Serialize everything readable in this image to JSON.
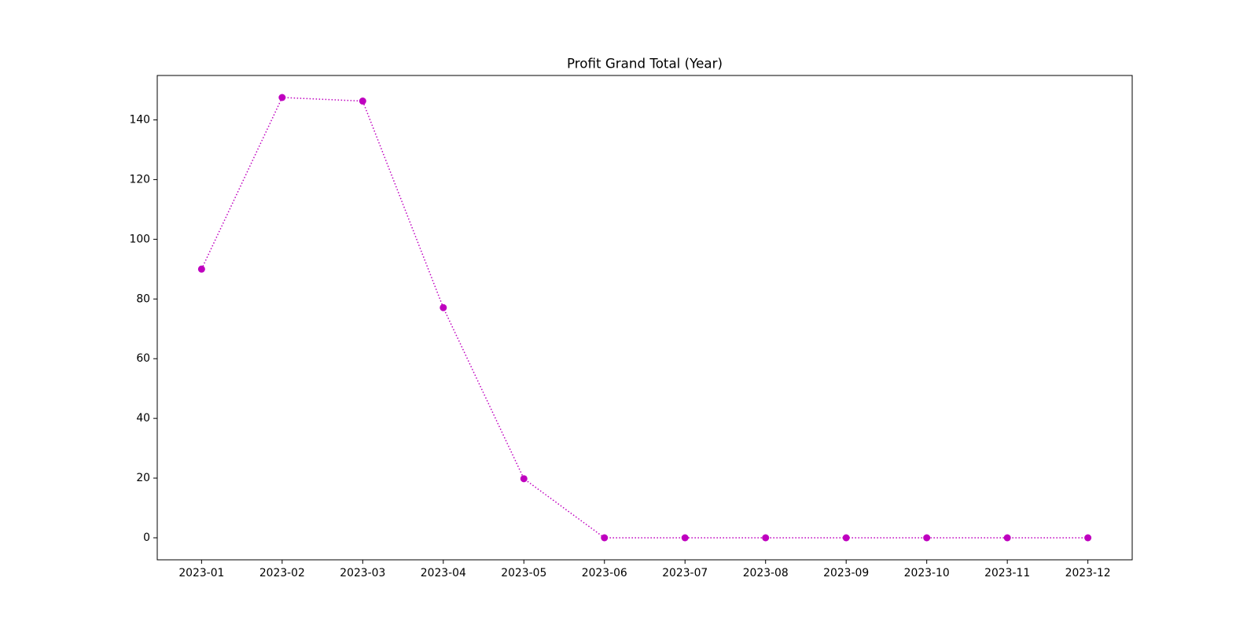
{
  "chart_data": {
    "type": "line",
    "title": "Profit Grand Total (Year)",
    "categories": [
      "2023-01",
      "2023-02",
      "2023-03",
      "2023-04",
      "2023-05",
      "2023-06",
      "2023-07",
      "2023-08",
      "2023-09",
      "2023-10",
      "2023-11",
      "2023-12"
    ],
    "series": [
      {
        "color": "#bf00bf",
        "values": [
          90,
          147.5,
          146.3,
          77.1,
          19.8,
          0,
          0,
          0,
          0,
          0,
          0,
          0
        ]
      }
    ],
    "ylim": [
      -7.375,
      154.875
    ],
    "yticks": [
      0,
      20,
      40,
      60,
      80,
      100,
      120,
      140
    ],
    "grid": false
  }
}
